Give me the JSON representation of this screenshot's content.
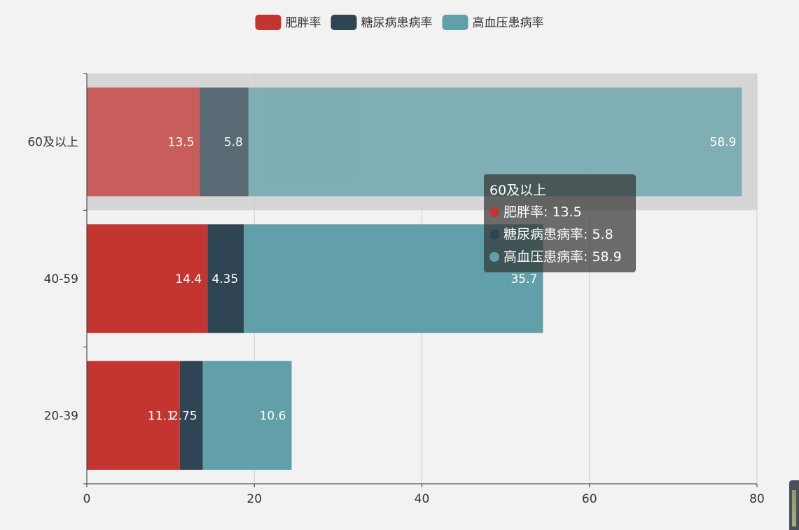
{
  "chart_data": {
    "type": "bar",
    "orientation": "horizontal",
    "stacked": true,
    "categories": [
      "20-39",
      "40-59",
      "60及以上"
    ],
    "series": [
      {
        "name": "肥胖率",
        "color": "#c23531",
        "values": [
          11.1,
          14.4,
          13.5
        ],
        "labels": [
          "11.1",
          "14.4",
          "13.5"
        ]
      },
      {
        "name": "糖尿病患病率",
        "color": "#2f4554",
        "values": [
          2.75,
          4.35,
          5.8
        ],
        "labels": [
          "2.75",
          "4.35",
          "5.8"
        ]
      },
      {
        "name": "高血压患病率",
        "color": "#61a0a8",
        "values": [
          10.6,
          35.7,
          58.9
        ],
        "labels": [
          "10.6",
          "35.7",
          "58.9"
        ]
      }
    ],
    "xlim": [
      0,
      80
    ],
    "x_ticks": [
      "0",
      "20",
      "40",
      "60",
      "80"
    ],
    "grid": true,
    "legend_position": "top-center",
    "highlighted_category": "60及以上"
  },
  "tooltip": {
    "title": "60及以上",
    "rows": [
      {
        "label": "肥胖率: 13.5",
        "color": "#c23531"
      },
      {
        "label": "糖尿病患病率: 5.8",
        "color": "#2f4554"
      },
      {
        "label": "高血压患病率: 58.9",
        "color": "#61a0a8"
      }
    ]
  }
}
